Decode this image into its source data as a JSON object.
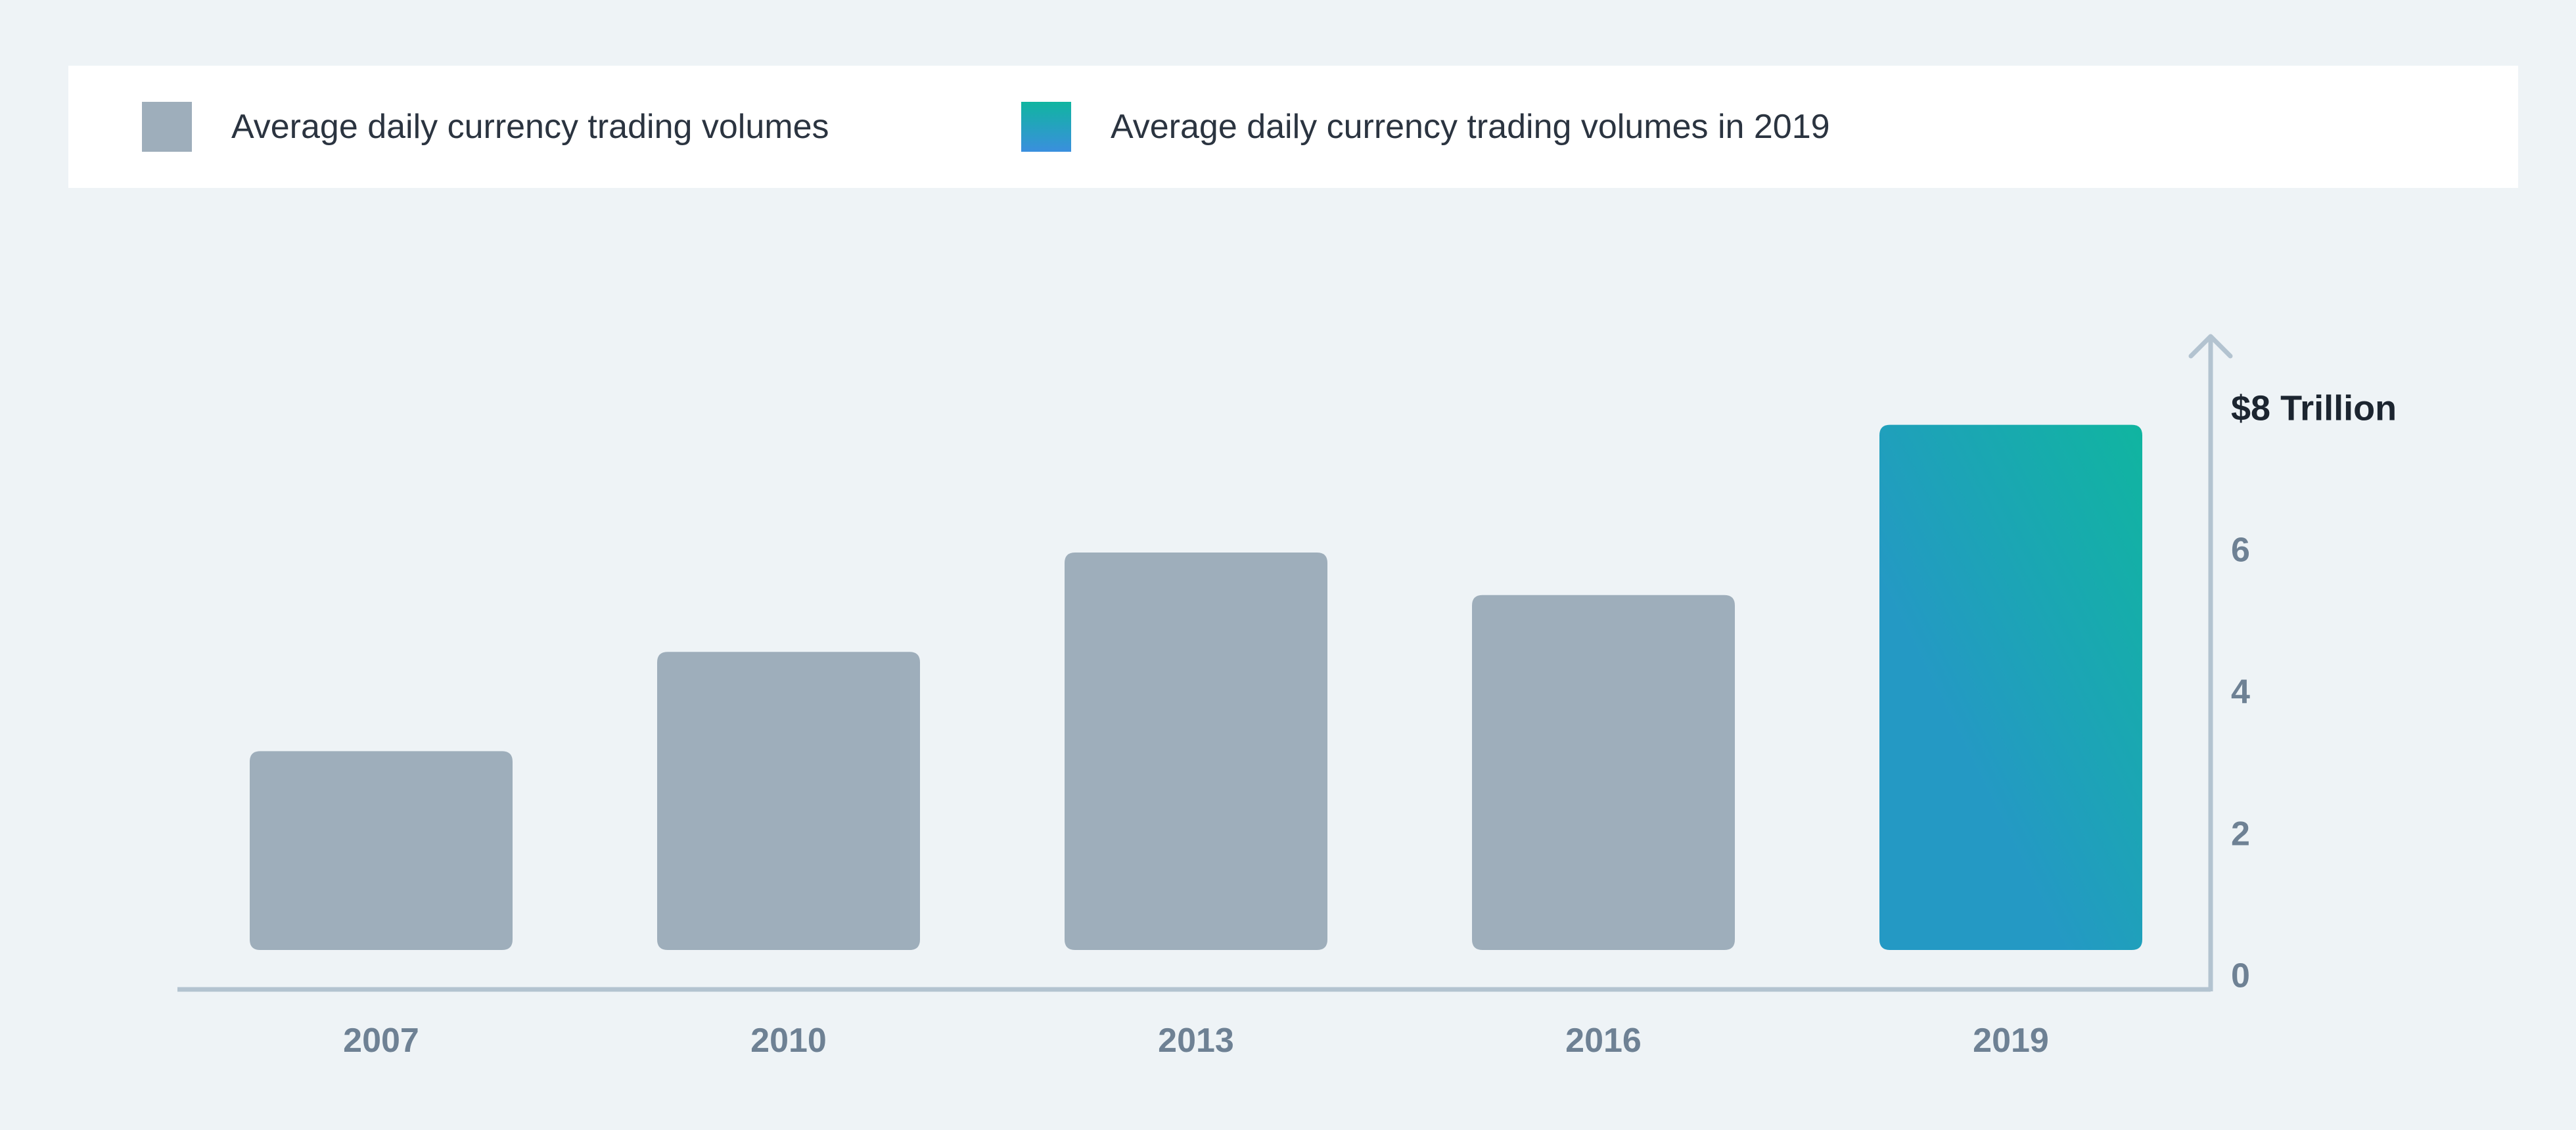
{
  "legend": {
    "items": [
      {
        "label": "Average daily currency trading volumes",
        "color": "#9eaebb"
      },
      {
        "label": "Average daily currency trading volumes in 2019",
        "color_start": "#10b5a0",
        "color_end": "#3a8fde"
      }
    ]
  },
  "chart_data": {
    "type": "bar",
    "title": "",
    "xlabel": "",
    "ylabel": "",
    "categories": [
      "2007",
      "2010",
      "2013",
      "2016",
      "2019"
    ],
    "series": [
      {
        "values": [
          3.2,
          4.6,
          6.0,
          5.4,
          7.8
        ]
      }
    ],
    "highlight_category": "2019",
    "y_ticks": [
      {
        "value": 0,
        "label": "0"
      },
      {
        "value": 2,
        "label": "2"
      },
      {
        "value": 4,
        "label": "4"
      },
      {
        "value": 6,
        "label": "6"
      },
      {
        "value": 8,
        "label": "$8 Trillion"
      }
    ],
    "ylim": [
      0,
      8
    ],
    "y_axis_position": "right",
    "grid": false,
    "legend_position": "top",
    "colors": {
      "bar": "#9eaebb",
      "highlight_start": "#10b5a0",
      "highlight_end": "#2499c4",
      "axis": "#b3c3d0",
      "tick_label": "#6e8194",
      "top_tick_label": "#1c2530"
    }
  }
}
